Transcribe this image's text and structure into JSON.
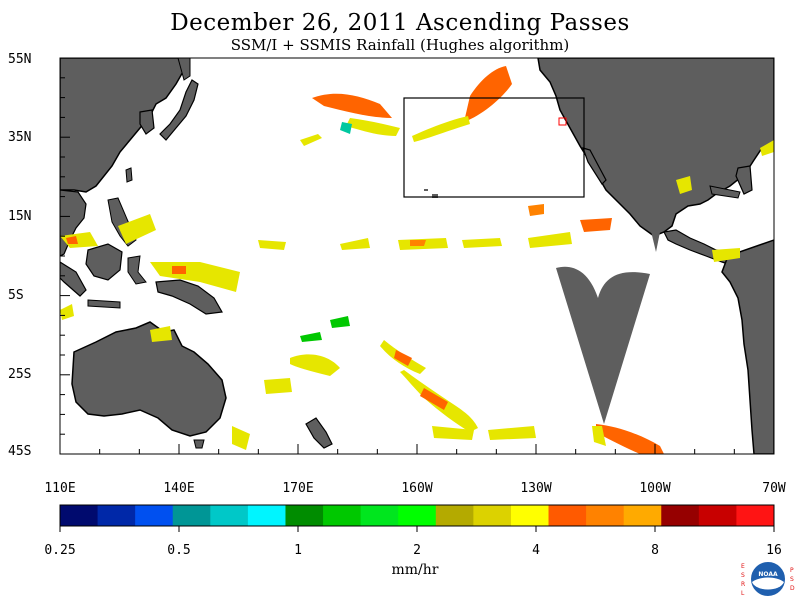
{
  "title": "December 26, 2011  Ascending Passes",
  "subtitle": "SSM/I + SSMIS Rainfall (Hughes algorithm)",
  "lat_labels": [
    "55N",
    "35N",
    "15N",
    "5S",
    "25S",
    "45S"
  ],
  "lon_labels": [
    "110E",
    "140E",
    "170E",
    "160W",
    "130W",
    "100W",
    "70W"
  ],
  "colorbar": {
    "colors": [
      "#000a6e",
      "#0028a8",
      "#0050f0",
      "#009696",
      "#00c8c8",
      "#00f5ff",
      "#008c00",
      "#00c800",
      "#00e61e",
      "#00ff00",
      "#b4aa00",
      "#dcd200",
      "#ffff00",
      "#ff5a00",
      "#ff8200",
      "#ffaa00",
      "#960000",
      "#c80000",
      "#ff1414"
    ],
    "tick_labels": [
      "0.25",
      "0.5",
      "1",
      "2",
      "4",
      "8",
      "16"
    ],
    "units": "mm/hr"
  },
  "logo": {
    "left_letters": "ESRL",
    "right_letters": "PSD",
    "center_text": "NOAA"
  },
  "colors": {
    "land": "#5e5e5e",
    "ocean": "#ffffff",
    "box": "#000000",
    "marker": "#ff0000"
  }
}
